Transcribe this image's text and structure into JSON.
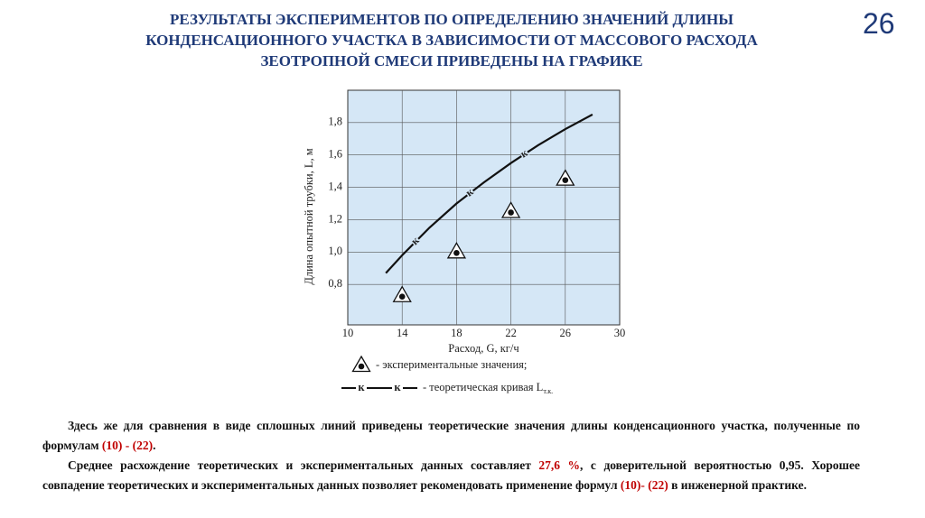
{
  "title_lines": [
    "РЕЗУЛЬТАТЫ ЭКСПЕРИМЕНТОВ ПО ОПРЕДЕЛЕНИЮ ЗНАЧЕНИЙ ДЛИНЫ",
    "КОНДЕНСАЦИОННОГО УЧАСТКА В ЗАВИСИМОСТИ ОТ МАССОВОГО РАСХОДА",
    "ЗЕОТРОПНОЙ  СМЕСИ ПРИВЕДЕНЫ НА ГРАФИКЕ"
  ],
  "page_number": "26",
  "chart_data": {
    "type": "line",
    "x_label": "Расход,  G, кг/ч",
    "y_label": "Длина опытной трубки, L, м",
    "xlim": [
      10,
      30
    ],
    "xticks": [
      10,
      14,
      18,
      22,
      26,
      30
    ],
    "ylim": [
      0.55,
      2.0
    ],
    "yticks": [
      {
        "value": 0.8,
        "label": "0,8"
      },
      {
        "value": 1.0,
        "label": "1,0"
      },
      {
        "value": 1.2,
        "label": "1,2"
      },
      {
        "value": 1.4,
        "label": "1,4"
      },
      {
        "value": 1.6,
        "label": "1,6"
      },
      {
        "value": 1.8,
        "label": "1,8"
      }
    ],
    "grid": true,
    "background": "#d5e7f6",
    "series": [
      {
        "name": "- экспериментальные значения;",
        "kind": "scatter",
        "color": "#111111",
        "x": [
          14,
          18,
          22,
          26
        ],
        "values": [
          0.73,
          1.0,
          1.25,
          1.45
        ]
      },
      {
        "name": "- теоретическая кривая L",
        "name_subscript": "т.к.",
        "kind": "line",
        "color": "#111111",
        "marker_label": "к",
        "x": [
          12.8,
          14,
          16,
          18,
          20,
          22,
          24,
          26,
          28
        ],
        "values": [
          0.87,
          0.98,
          1.15,
          1.3,
          1.43,
          1.55,
          1.66,
          1.76,
          1.85
        ]
      }
    ]
  },
  "paragraphs": [
    [
      {
        "text": "Здесь же для сравнения в виде сплошных линий приведены теоретические значения длины конденсационного участка, полученные по формулам "
      },
      {
        "text": "(10) - (22)",
        "color": "#c00000"
      },
      {
        "text": "."
      }
    ],
    [
      {
        "text": "Среднее расхождение теоретических и экспериментальных данных составляет "
      },
      {
        "text": "27,6 %",
        "color": "#c00000"
      },
      {
        "text": ", с доверительной вероятностью 0,95. Хорошее совпадение теоретических и экспериментальных данных позволяет рекомендовать применение формул "
      },
      {
        "text": "(10)- (22)",
        "color": "#c00000"
      },
      {
        "text": " в инженерной практике."
      }
    ]
  ]
}
